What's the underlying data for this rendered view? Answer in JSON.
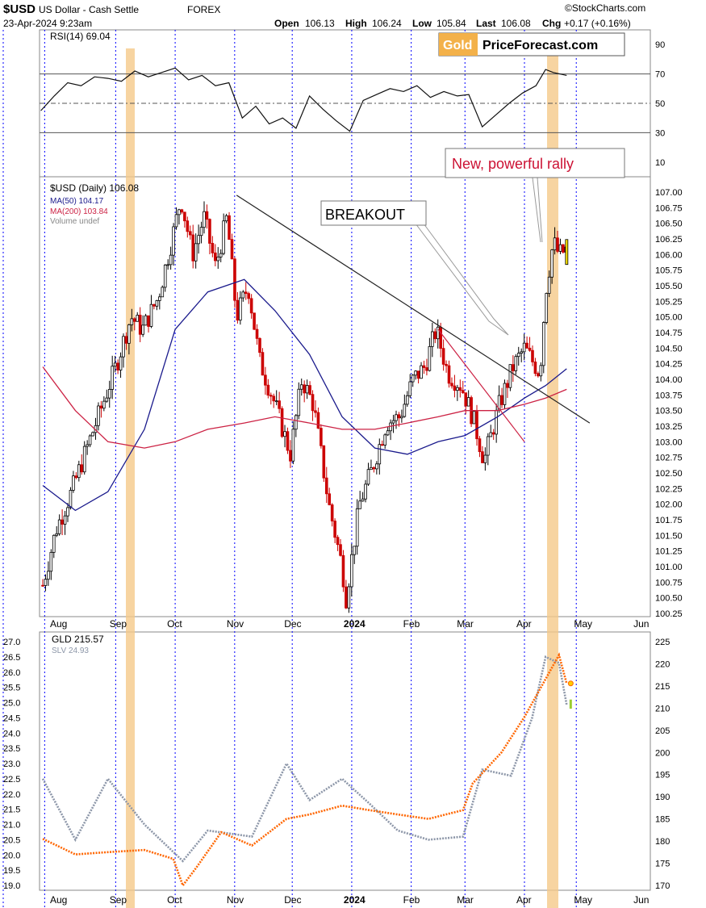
{
  "header": {
    "symbol": "$USD",
    "name": "US Dollar - Cash Settle",
    "exchange": "FOREX",
    "date": "23-Apr-2024 9:23am",
    "open_label": "Open",
    "open": "106.13",
    "high_label": "High",
    "high": "106.24",
    "low_label": "Low",
    "low": "105.84",
    "last_label": "Last",
    "last": "106.08",
    "chg_label": "Chg",
    "chg": "+0.17 (+0.16%)",
    "watermark": "©StockCharts.com"
  },
  "logo": {
    "gold": "Gold",
    "rest": "PriceForecast.com"
  },
  "colors": {
    "up": "#000000",
    "down": "#cc0000",
    "ma50": "#1a1a8c",
    "ma200": "#cc2244",
    "highlight": "#f5c98a",
    "gridline": "#0000ff",
    "gld": "#ff6600",
    "slv": "#8c96a8",
    "annotation_red": "#cc1133"
  },
  "chart_data": [
    {
      "type": "line",
      "title": "RSI(14) 69.04",
      "y_ticks": [
        "90",
        "70",
        "50",
        "30",
        "10"
      ],
      "ylim": [
        0,
        100
      ],
      "levels": [
        70,
        50,
        30
      ],
      "points": [
        [
          "2024-07-23",
          45
        ],
        [
          "2024-07-30",
          55
        ],
        [
          "2024-08-06",
          64
        ],
        [
          "2024-08-13",
          62
        ],
        [
          "2024-08-20",
          68
        ],
        [
          "2024-08-27",
          67
        ],
        [
          "2024-09-03",
          65
        ],
        [
          "2024-09-10",
          72
        ],
        [
          "2024-09-17",
          68
        ],
        [
          "2024-09-24",
          71
        ],
        [
          "2024-10-01",
          74
        ],
        [
          "2024-10-08",
          66
        ],
        [
          "2024-10-15",
          69
        ],
        [
          "2024-10-22",
          62
        ],
        [
          "2024-10-29",
          64
        ],
        [
          "2024-11-05",
          40
        ],
        [
          "2024-11-12",
          48
        ],
        [
          "2024-11-19",
          36
        ],
        [
          "2024-11-26",
          40
        ],
        [
          "2024-12-03",
          33
        ],
        [
          "2024-12-10",
          55
        ],
        [
          "2024-12-17",
          46
        ],
        [
          "2024-12-24",
          38
        ],
        [
          "2024-12-31",
          31
        ],
        [
          "2024-01-07",
          52
        ],
        [
          "2024-01-14",
          56
        ],
        [
          "2024-01-21",
          60
        ],
        [
          "2024-01-28",
          58
        ],
        [
          "2024-02-04",
          62
        ],
        [
          "2024-02-11",
          54
        ],
        [
          "2024-02-18",
          58
        ],
        [
          "2024-02-25",
          55
        ],
        [
          "2024-03-03",
          56
        ],
        [
          "2024-03-10",
          34
        ],
        [
          "2024-03-17",
          42
        ],
        [
          "2024-03-24",
          50
        ],
        [
          "2024-03-31",
          57
        ],
        [
          "2024-04-07",
          62
        ],
        [
          "2024-04-12",
          73
        ],
        [
          "2024-04-16",
          71
        ],
        [
          "2024-04-23",
          69
        ]
      ]
    },
    {
      "type": "candlestick",
      "title": "$USD (Daily) 106.08",
      "legend": [
        {
          "name": "MA(50) 104.17",
          "color": "#1a1a8c"
        },
        {
          "name": "MA(200) 103.84",
          "color": "#cc2244"
        },
        {
          "name": "Volume undef",
          "color": "#888888"
        }
      ],
      "ylim": [
        100.2,
        107.2
      ],
      "y_ticks": [
        "107.00",
        "106.75",
        "106.50",
        "106.25",
        "106.00",
        "105.75",
        "105.50",
        "105.25",
        "105.00",
        "104.75",
        "104.50",
        "104.25",
        "104.00",
        "103.75",
        "103.50",
        "103.25",
        "103.00",
        "102.75",
        "102.50",
        "102.25",
        "102.00",
        "101.75",
        "101.50",
        "101.25",
        "101.00",
        "100.75",
        "100.50",
        "100.25"
      ],
      "x_ticks": [
        "Aug",
        "Sep",
        "Oct",
        "Nov",
        "Dec",
        "2024",
        "Feb",
        "Mar",
        "Apr",
        "May",
        "Jun"
      ],
      "price_path": [
        [
          "07-24",
          100.7
        ],
        [
          "07-31",
          101.6
        ],
        [
          "08-08",
          102.2
        ],
        [
          "08-16",
          102.9
        ],
        [
          "08-23",
          103.5
        ],
        [
          "08-31",
          104.2
        ],
        [
          "09-08",
          105.0
        ],
        [
          "09-14",
          104.8
        ],
        [
          "09-22",
          105.3
        ],
        [
          "09-29",
          106.2
        ],
        [
          "10-04",
          106.9
        ],
        [
          "10-10",
          106.0
        ],
        [
          "10-16",
          106.6
        ],
        [
          "10-22",
          105.8
        ],
        [
          "10-28",
          106.6
        ],
        [
          "11-02",
          105.0
        ],
        [
          "11-08",
          105.5
        ],
        [
          "11-14",
          104.3
        ],
        [
          "11-22",
          103.6
        ],
        [
          "11-30",
          102.8
        ],
        [
          "12-06",
          104.0
        ],
        [
          "12-12",
          103.6
        ],
        [
          "12-20",
          102.0
        ],
        [
          "12-27",
          101.0
        ],
        [
          "12-29",
          100.5
        ],
        [
          "01-05",
          102.0
        ],
        [
          "01-12",
          102.6
        ],
        [
          "01-19",
          103.3
        ],
        [
          "01-26",
          103.4
        ],
        [
          "02-02",
          104.0
        ],
        [
          "02-08",
          104.2
        ],
        [
          "02-14",
          104.8
        ],
        [
          "02-20",
          104.1
        ],
        [
          "02-27",
          103.9
        ],
        [
          "03-05",
          103.4
        ],
        [
          "03-11",
          102.7
        ],
        [
          "03-19",
          103.6
        ],
        [
          "03-26",
          104.2
        ],
        [
          "04-01",
          104.5
        ],
        [
          "04-05",
          104.3
        ],
        [
          "04-09",
          104.1
        ],
        [
          "04-12",
          105.4
        ],
        [
          "04-16",
          106.2
        ],
        [
          "04-19",
          106.0
        ],
        [
          "04-23",
          106.08
        ]
      ],
      "ma50_path": [
        [
          "07-24",
          102.3
        ],
        [
          "08-10",
          101.9
        ],
        [
          "08-27",
          102.2
        ],
        [
          "09-15",
          103.2
        ],
        [
          "10-01",
          104.8
        ],
        [
          "10-18",
          105.4
        ],
        [
          "11-06",
          105.6
        ],
        [
          "11-22",
          105.1
        ],
        [
          "12-10",
          104.4
        ],
        [
          "12-27",
          103.4
        ],
        [
          "01-13",
          102.9
        ],
        [
          "01-30",
          102.8
        ],
        [
          "02-15",
          103.0
        ],
        [
          "03-01",
          103.1
        ],
        [
          "03-18",
          103.4
        ],
        [
          "04-01",
          103.7
        ],
        [
          "04-12",
          103.9
        ],
        [
          "04-23",
          104.17
        ]
      ],
      "ma200_path": [
        [
          "07-24",
          104.2
        ],
        [
          "08-10",
          103.5
        ],
        [
          "08-27",
          103.0
        ],
        [
          "09-15",
          102.9
        ],
        [
          "10-01",
          103.0
        ],
        [
          "10-18",
          103.2
        ],
        [
          "11-06",
          103.3
        ],
        [
          "11-22",
          103.4
        ],
        [
          "12-10",
          103.3
        ],
        [
          "12-27",
          103.2
        ],
        [
          "01-13",
          103.2
        ],
        [
          "01-30",
          103.3
        ],
        [
          "02-15",
          103.4
        ],
        [
          "03-01",
          103.5
        ],
        [
          "03-18",
          103.5
        ],
        [
          "04-01",
          103.6
        ],
        [
          "04-12",
          103.7
        ],
        [
          "04-23",
          103.84
        ]
      ],
      "trendlines": [
        {
          "from": [
            "11-02",
            106.95
          ],
          "to": [
            "05-05",
            103.3
          ],
          "color": "#222222"
        },
        {
          "from": [
            "02-15",
            104.8
          ],
          "to": [
            "04-01",
            103.0
          ],
          "color": "#cc2244"
        }
      ],
      "annotations": [
        {
          "text": "BREAKOUT",
          "style": "box"
        },
        {
          "text": "New, powerful rally",
          "style": "red-box"
        }
      ]
    },
    {
      "type": "line",
      "title_gld": "GLD 215.57",
      "title_slv": "SLV 24.93",
      "left_axis": [
        "27.0",
        "26.5",
        "26.0",
        "25.5",
        "25.0",
        "24.5",
        "24.0",
        "23.5",
        "23.0",
        "22.5",
        "22.0",
        "21.5",
        "21.0",
        "20.5",
        "20.0",
        "19.5",
        "19.0"
      ],
      "right_axis": [
        "225",
        "220",
        "215",
        "210",
        "205",
        "200",
        "195",
        "190",
        "185",
        "180",
        "175",
        "170"
      ],
      "gld_ylim": [
        168,
        226
      ],
      "series": [
        {
          "name": "GLD",
          "values": [
            [
              "07-24",
              180.5
            ],
            [
              "08-10",
              177
            ],
            [
              "08-27",
              177.5
            ],
            [
              "09-15",
              178
            ],
            [
              "09-30",
              176
            ],
            [
              "10-05",
              170
            ],
            [
              "10-12",
              174
            ],
            [
              "10-25",
              182
            ],
            [
              "11-10",
              179
            ],
            [
              "11-28",
              185
            ],
            [
              "12-10",
              186
            ],
            [
              "12-27",
              188
            ],
            [
              "01-10",
              187
            ],
            [
              "01-25",
              186
            ],
            [
              "02-10",
              185
            ],
            [
              "02-28",
              187
            ],
            [
              "03-05",
              193
            ],
            [
              "03-20",
              200
            ],
            [
              "04-01",
              208
            ],
            [
              "04-10",
              215
            ],
            [
              "04-19",
              222
            ],
            [
              "04-23",
              215.57
            ]
          ]
        },
        {
          "name": "SLV",
          "values": [
            [
              "07-24",
              22.5
            ],
            [
              "08-10",
              20.5
            ],
            [
              "08-27",
              22.5
            ],
            [
              "09-15",
              21.0
            ],
            [
              "10-05",
              19.8
            ],
            [
              "10-18",
              20.8
            ],
            [
              "11-10",
              20.6
            ],
            [
              "11-28",
              23.0
            ],
            [
              "12-10",
              21.8
            ],
            [
              "12-27",
              22.5
            ],
            [
              "01-10",
              21.7
            ],
            [
              "01-25",
              20.8
            ],
            [
              "02-10",
              20.5
            ],
            [
              "02-28",
              20.6
            ],
            [
              "03-10",
              22.8
            ],
            [
              "03-25",
              22.6
            ],
            [
              "04-05",
              24.5
            ],
            [
              "04-12",
              26.5
            ],
            [
              "04-19",
              26.3
            ],
            [
              "04-23",
              24.93
            ]
          ]
        }
      ]
    }
  ]
}
